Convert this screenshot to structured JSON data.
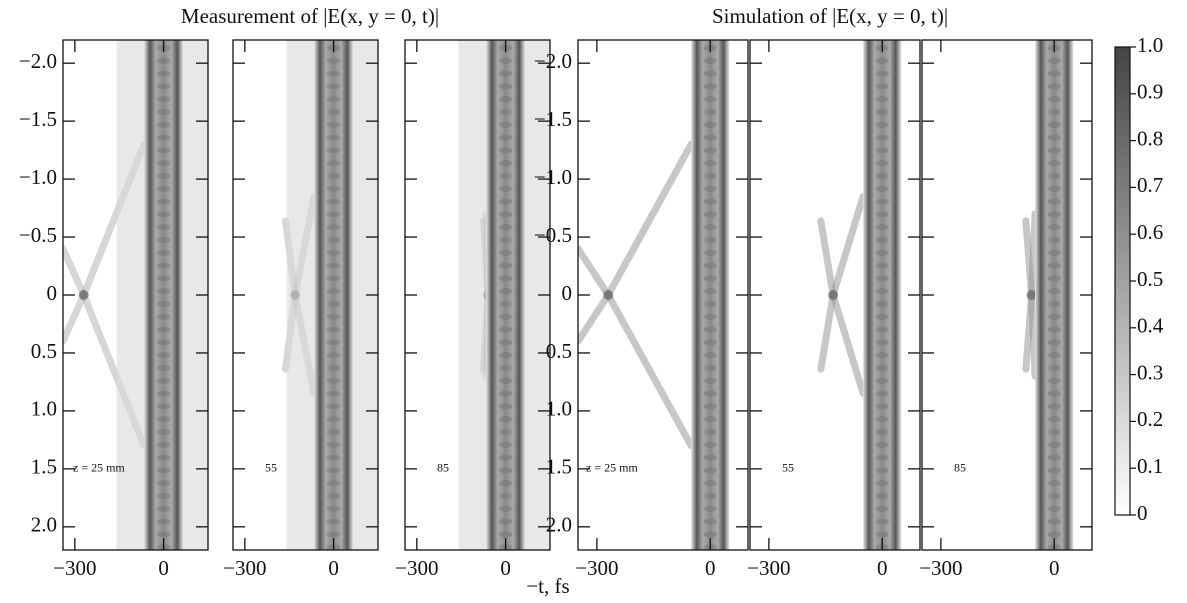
{
  "titles": [
    "Measurement of |E(x, y = 0, t)|",
    "Simulation of |E(x, y = 0, t)|"
  ],
  "x_label": "−t, fs",
  "chart_data": [
    {
      "type": "heatmap",
      "kind": "measurement",
      "label": "z = 25 mm",
      "xlim": [
        -340,
        150
      ],
      "xticks": [
        {
          "value": -300,
          "label": "−300"
        },
        0
      ],
      "ylim": [
        -2.2,
        2.2
      ],
      "yticks": [
        {
          "value": -2.0,
          "label": "−2.0"
        },
        {
          "value": -1.5,
          "label": "−1.5"
        },
        {
          "value": -1.0,
          "label": "−1.0"
        },
        {
          "value": -0.5,
          "label": "−0.5"
        },
        0,
        0.5,
        {
          "value": 1.0,
          "label": "1.0"
        },
        1.5,
        {
          "value": 2.0,
          "label": "2.0"
        }
      ]
    },
    {
      "type": "heatmap",
      "kind": "measurement",
      "label": "55",
      "sharey": true,
      "xlim": [
        -340,
        150
      ],
      "xticks": [
        {
          "value": -300,
          "label": "−300"
        },
        0
      ],
      "ylim": [
        -2.2,
        2.2
      ]
    },
    {
      "type": "heatmap",
      "kind": "measurement",
      "label": "85",
      "sharey": true,
      "xlim": [
        -340,
        150
      ],
      "xticks": [
        {
          "value": -300,
          "label": "−300"
        },
        0
      ],
      "ylim": [
        -2.2,
        2.2
      ]
    },
    {
      "type": "heatmap",
      "kind": "simulation",
      "label": "z = 25 mm",
      "xlim": [
        -350,
        100
      ],
      "xticks": [
        {
          "value": -300,
          "label": "−300"
        },
        0
      ],
      "ylim": [
        -2.2,
        2.2
      ],
      "yticks": [
        {
          "value": -2.0,
          "label": "−2.0"
        },
        {
          "value": -1.5,
          "label": "−1.5"
        },
        {
          "value": -1.0,
          "label": "−1.0"
        },
        {
          "value": -0.5,
          "label": "−0.5"
        },
        0,
        0.5,
        {
          "value": 1.0,
          "label": "1.0"
        },
        1.5,
        {
          "value": 2.0,
          "label": "2.0"
        }
      ]
    },
    {
      "type": "heatmap",
      "kind": "simulation",
      "label": "55",
      "sharey": true,
      "xlim": [
        -350,
        100
      ],
      "xticks": [
        {
          "value": -300,
          "label": "−300"
        },
        0
      ],
      "ylim": [
        -2.2,
        2.2
      ]
    },
    {
      "type": "heatmap",
      "kind": "simulation",
      "label": "85",
      "sharey": true,
      "xlim": [
        -350,
        100
      ],
      "xticks": [
        {
          "value": -300,
          "label": "−300"
        },
        0
      ],
      "ylim": [
        -2.2,
        2.2
      ]
    },
    {
      "type": "colorbar",
      "colors": [
        "#ffffff",
        "#444444"
      ],
      "ylim": [
        0,
        1
      ],
      "yticks": [
        0,
        0.1,
        0.2,
        0.3,
        0.4,
        0.5,
        0.6,
        0.7,
        0.8,
        0.9,
        {
          "value": 1.0,
          "label": "1.0"
        }
      ]
    }
  ]
}
